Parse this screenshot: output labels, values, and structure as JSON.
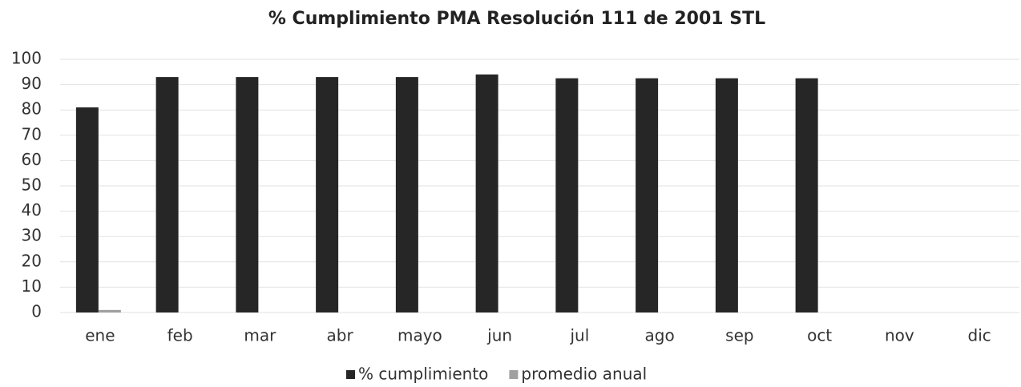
{
  "chart_data": {
    "type": "bar",
    "title": "% Cumplimiento PMA Resolución 111 de 2001 STL",
    "categories": [
      "ene",
      "feb",
      "mar",
      "abr",
      "mayo",
      "jun",
      "jul",
      "ago",
      "sep",
      "oct",
      "nov",
      "dic"
    ],
    "series": [
      {
        "name": "% cumplimiento",
        "color": "#262626",
        "values": [
          81,
          93,
          93,
          93,
          93,
          94,
          92.5,
          92.5,
          92.5,
          92.5,
          null,
          null
        ]
      },
      {
        "name": "promedio anual",
        "color": "#a0a0a0",
        "values": [
          1,
          null,
          null,
          null,
          null,
          null,
          null,
          null,
          null,
          null,
          null,
          null
        ]
      }
    ],
    "ylim": [
      0,
      100
    ],
    "yticks": [
      0,
      10,
      20,
      30,
      40,
      50,
      60,
      70,
      80,
      90,
      100
    ],
    "grid": true,
    "legend": "bottom"
  }
}
